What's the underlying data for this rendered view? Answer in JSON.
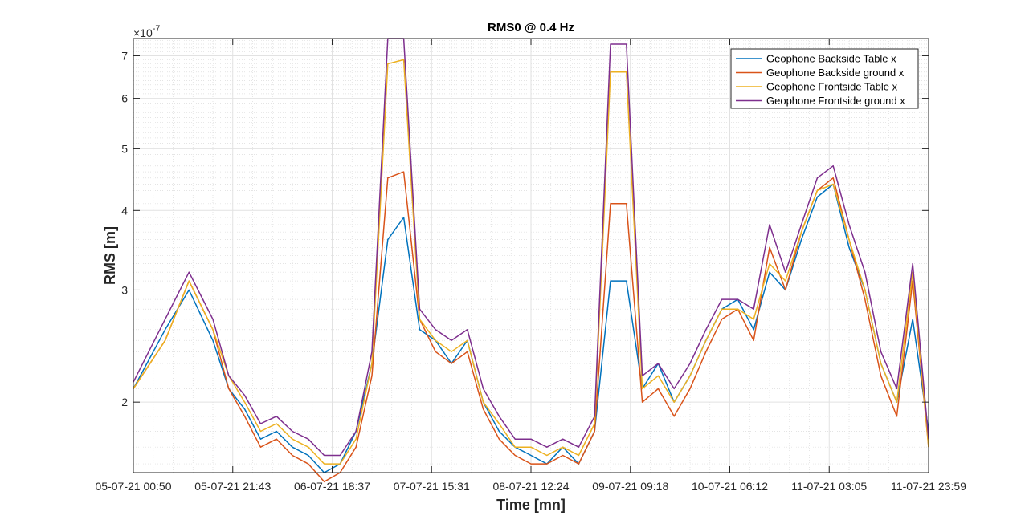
{
  "chart_data": {
    "type": "line",
    "title": "RMS0 @ 0.4 Hz",
    "xlabel": "Time [mn]",
    "ylabel": "RMS [m]",
    "y_scale": "log",
    "y_exponent_label": "×10",
    "y_exponent": "-7",
    "ylim": [
      1.55,
      7.45
    ],
    "y_ticks": [
      2,
      3,
      4,
      5,
      6,
      7
    ],
    "y_tick_labels": [
      "2",
      "3",
      "4",
      "5",
      "6",
      "7"
    ],
    "xlim": [
      0,
      1000
    ],
    "x_tick_labels": [
      "05-07-21 00:50",
      "05-07-21 21:43",
      "06-07-21 18:37",
      "07-07-21 15:31",
      "08-07-21 12:24",
      "09-07-21 09:18",
      "10-07-21 06:12",
      "11-07-21 03:05",
      "11-07-21 23:59"
    ],
    "grid": true,
    "minor_grid": true,
    "legend_position": "top-right",
    "series": [
      {
        "name": "Geophone Backside Table x",
        "color": "#0072BD",
        "x": [
          0,
          40,
          70,
          100,
          120,
          140,
          160,
          180,
          200,
          220,
          240,
          260,
          280,
          300,
          320,
          340,
          360,
          380,
          400,
          420,
          440,
          460,
          480,
          500,
          520,
          540,
          560,
          580,
          600,
          620,
          640,
          660,
          680,
          700,
          720,
          740,
          760,
          780,
          800,
          820,
          840,
          860,
          880,
          900,
          920,
          940,
          960,
          980,
          1000
        ],
        "values": [
          2.1,
          2.6,
          3.0,
          2.5,
          2.1,
          1.95,
          1.75,
          1.8,
          1.7,
          1.65,
          1.55,
          1.6,
          1.8,
          2.3,
          3.6,
          3.9,
          2.6,
          2.5,
          2.3,
          2.5,
          2.0,
          1.8,
          1.7,
          1.65,
          1.6,
          1.7,
          1.6,
          1.8,
          3.1,
          3.1,
          2.1,
          2.3,
          2.0,
          2.2,
          2.5,
          2.8,
          2.9,
          2.6,
          3.2,
          3.0,
          3.6,
          4.2,
          4.4,
          3.5,
          3.0,
          2.3,
          2.0,
          2.7,
          1.8
        ]
      },
      {
        "name": "Geophone Backside ground x",
        "color": "#D95319",
        "x": [
          0,
          40,
          70,
          100,
          120,
          140,
          160,
          180,
          200,
          220,
          240,
          260,
          280,
          300,
          320,
          340,
          360,
          380,
          400,
          420,
          440,
          460,
          480,
          500,
          520,
          540,
          560,
          580,
          600,
          620,
          640,
          660,
          680,
          700,
          720,
          740,
          760,
          780,
          800,
          820,
          840,
          860,
          880,
          900,
          920,
          940,
          960,
          980,
          1000
        ],
        "values": [
          2.1,
          2.5,
          3.1,
          2.6,
          2.1,
          1.9,
          1.7,
          1.75,
          1.65,
          1.6,
          1.5,
          1.55,
          1.7,
          2.2,
          4.5,
          4.6,
          2.7,
          2.4,
          2.3,
          2.4,
          1.95,
          1.75,
          1.65,
          1.6,
          1.6,
          1.65,
          1.6,
          1.8,
          4.1,
          4.1,
          2.0,
          2.1,
          1.9,
          2.1,
          2.4,
          2.7,
          2.8,
          2.5,
          3.5,
          3.0,
          3.7,
          4.3,
          4.5,
          3.6,
          2.9,
          2.2,
          1.9,
          3.1,
          1.7
        ]
      },
      {
        "name": "Geophone Frontside Table x",
        "color": "#EDB120",
        "x": [
          0,
          40,
          70,
          100,
          120,
          140,
          160,
          180,
          200,
          220,
          240,
          260,
          280,
          300,
          320,
          340,
          360,
          380,
          400,
          420,
          440,
          460,
          480,
          500,
          520,
          540,
          560,
          580,
          600,
          620,
          640,
          660,
          680,
          700,
          720,
          740,
          760,
          780,
          800,
          820,
          840,
          860,
          880,
          900,
          920,
          940,
          960,
          980,
          1000
        ],
        "values": [
          2.1,
          2.5,
          3.1,
          2.6,
          2.2,
          2.0,
          1.8,
          1.85,
          1.75,
          1.7,
          1.6,
          1.6,
          1.75,
          2.3,
          6.8,
          6.9,
          2.7,
          2.5,
          2.4,
          2.5,
          2.0,
          1.85,
          1.7,
          1.7,
          1.65,
          1.7,
          1.65,
          1.85,
          6.6,
          6.6,
          2.1,
          2.2,
          2.0,
          2.2,
          2.5,
          2.8,
          2.8,
          2.7,
          3.3,
          3.1,
          3.7,
          4.3,
          4.4,
          3.6,
          3.0,
          2.3,
          2.0,
          3.2,
          1.7
        ]
      },
      {
        "name": "Geophone Frontside ground x",
        "color": "#7E2F8E",
        "x": [
          0,
          40,
          70,
          100,
          120,
          140,
          160,
          180,
          200,
          220,
          240,
          260,
          280,
          300,
          320,
          340,
          360,
          380,
          400,
          420,
          440,
          460,
          480,
          500,
          520,
          540,
          560,
          580,
          600,
          620,
          640,
          660,
          680,
          700,
          720,
          740,
          760,
          780,
          800,
          820,
          840,
          860,
          880,
          900,
          920,
          940,
          960,
          980,
          1000
        ],
        "values": [
          2.15,
          2.7,
          3.2,
          2.7,
          2.2,
          2.05,
          1.85,
          1.9,
          1.8,
          1.75,
          1.65,
          1.65,
          1.8,
          2.4,
          7.45,
          7.45,
          2.8,
          2.6,
          2.5,
          2.6,
          2.1,
          1.9,
          1.75,
          1.75,
          1.7,
          1.75,
          1.7,
          1.9,
          7.3,
          7.3,
          2.2,
          2.3,
          2.1,
          2.3,
          2.6,
          2.9,
          2.9,
          2.8,
          3.8,
          3.2,
          3.8,
          4.5,
          4.7,
          3.8,
          3.2,
          2.4,
          2.1,
          3.3,
          1.75
        ]
      }
    ]
  }
}
